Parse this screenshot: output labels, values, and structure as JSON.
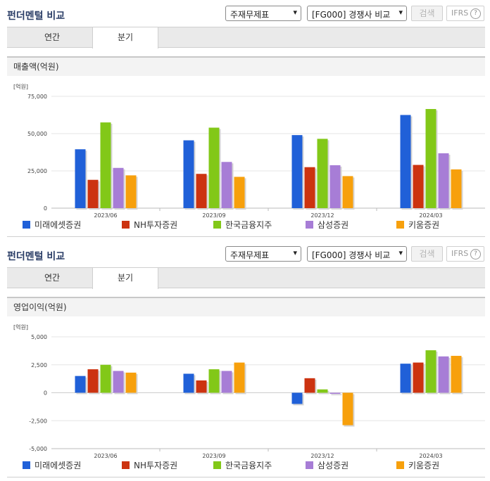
{
  "panels": [
    {
      "title": "펀더멘털 비교",
      "select_type": "주재무제표",
      "select_compare": "[FG000] 경쟁사 비교",
      "search_label": "검색",
      "ifrs_label": "IFRS",
      "help_symbol": "?",
      "tabs": [
        "연간",
        "분기"
      ],
      "active_tab": 1,
      "chart_title": "매출액(억원)"
    },
    {
      "title": "펀더멘털 비교",
      "select_type": "주재무제표",
      "select_compare": "[FG000] 경쟁사 비교",
      "search_label": "검색",
      "ifrs_label": "IFRS",
      "help_symbol": "?",
      "tabs": [
        "연간",
        "분기"
      ],
      "active_tab": 1,
      "chart_title": "영업이익(억원)"
    }
  ],
  "chart_data": [
    {
      "type": "bar",
      "title": "매출액(억원)",
      "unit_label": "[억원]",
      "categories": [
        "2023/06",
        "2023/09",
        "2023/12",
        "2024/03"
      ],
      "ylim": [
        0,
        75000
      ],
      "yticks": [
        0,
        25000,
        50000,
        75000
      ],
      "ytick_labels": [
        "0",
        "25,000",
        "50,000",
        "75,000"
      ],
      "grid": true,
      "legend": "bottom",
      "series": [
        {
          "name": "미래에셋증권",
          "color": "#2060d8",
          "values": [
            39500,
            45500,
            49000,
            62500
          ]
        },
        {
          "name": "NH투자증권",
          "color": "#cc3310",
          "values": [
            19000,
            23000,
            27500,
            29000
          ]
        },
        {
          "name": "한국금융지주",
          "color": "#82c818",
          "values": [
            57500,
            54000,
            46500,
            66500
          ]
        },
        {
          "name": "삼성증권",
          "color": "#a77dd6",
          "values": [
            27000,
            31000,
            28800,
            36800
          ]
        },
        {
          "name": "키움증권",
          "color": "#f7a00c",
          "values": [
            22000,
            21000,
            21500,
            26000
          ]
        }
      ]
    },
    {
      "type": "bar",
      "title": "영업이익(억원)",
      "unit_label": "[억원]",
      "categories": [
        "2023/06",
        "2023/09",
        "2023/12",
        "2024/03"
      ],
      "ylim": [
        -5000,
        5000
      ],
      "yticks": [
        -5000,
        -2500,
        0,
        2500,
        5000
      ],
      "ytick_labels": [
        "-5,000",
        "-2,500",
        "0",
        "2,500",
        "5,000"
      ],
      "grid": true,
      "legend": "bottom",
      "series": [
        {
          "name": "미래에셋증권",
          "color": "#2060d8",
          "values": [
            1500,
            1700,
            -1000,
            2600
          ]
        },
        {
          "name": "NH투자증권",
          "color": "#cc3310",
          "values": [
            2100,
            1100,
            1300,
            2700
          ]
        },
        {
          "name": "한국금융지주",
          "color": "#82c818",
          "values": [
            2500,
            2100,
            300,
            3800
          ]
        },
        {
          "name": "삼성증권",
          "color": "#a77dd6",
          "values": [
            1950,
            1950,
            -100,
            3250
          ]
        },
        {
          "name": "키움증권",
          "color": "#f7a00c",
          "values": [
            1800,
            2700,
            -2900,
            3300
          ]
        }
      ]
    }
  ]
}
